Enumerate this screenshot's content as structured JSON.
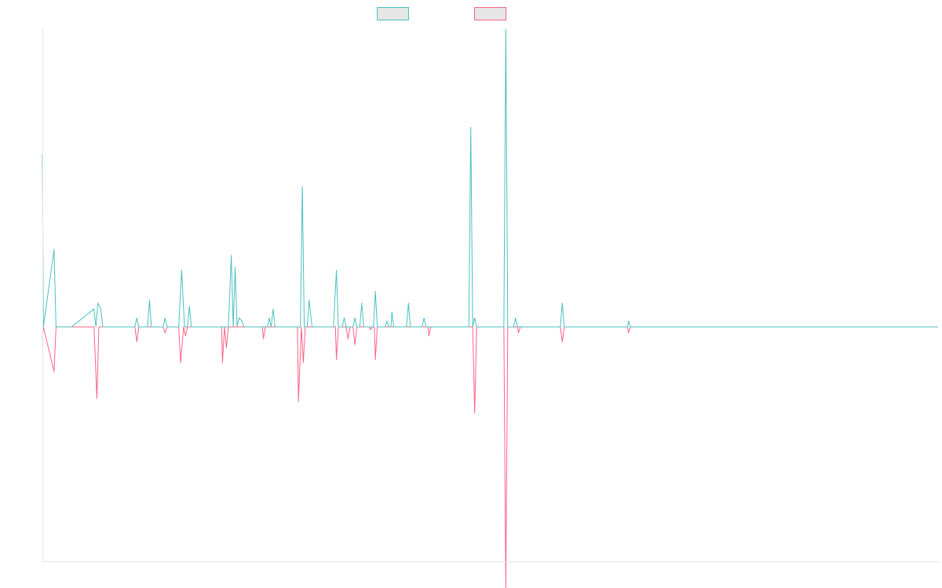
{
  "chart_data": {
    "type": "line",
    "title": "",
    "xlabel": "",
    "ylabel": "",
    "ylim": [
      -1,
      1
    ],
    "grid": false,
    "legend_position": "top-center",
    "series": [
      {
        "name": "",
        "color": "#4bc0c0",
        "points": [
          [
            0,
            0.58
          ],
          [
            1,
            0.0
          ],
          [
            12,
            0.26
          ],
          [
            14,
            0.0
          ],
          [
            30,
            0.0
          ],
          [
            53,
            0.06
          ],
          [
            55,
            0.0
          ],
          [
            57,
            0.08
          ],
          [
            60,
            0.06
          ],
          [
            62,
            0.0
          ],
          [
            95,
            0.0
          ],
          [
            97,
            0.03
          ],
          [
            99,
            0.0
          ],
          [
            108,
            0.0
          ],
          [
            110,
            0.09
          ],
          [
            112,
            0.0
          ],
          [
            124,
            0.0
          ],
          [
            126,
            0.03
          ],
          [
            128,
            0.0
          ],
          [
            140,
            0.0
          ],
          [
            143,
            0.19
          ],
          [
            146,
            0.0
          ],
          [
            149,
            0.0
          ],
          [
            151,
            0.07
          ],
          [
            153,
            0.0
          ],
          [
            191,
            0.0
          ],
          [
            194,
            0.24
          ],
          [
            196,
            0.0
          ],
          [
            198,
            0.2
          ],
          [
            200,
            0.0
          ],
          [
            202,
            0.03
          ],
          [
            205,
            0.02
          ],
          [
            207,
            0.0
          ],
          [
            231,
            0.0
          ],
          [
            233,
            0.03
          ],
          [
            235,
            0.0
          ],
          [
            237,
            0.06
          ],
          [
            239,
            0.0
          ],
          [
            265,
            0.0
          ],
          [
            267,
            0.47
          ],
          [
            269,
            0.0
          ],
          [
            272,
            0.0
          ],
          [
            274,
            0.09
          ],
          [
            277,
            0.0
          ],
          [
            299,
            0.0
          ],
          [
            302,
            0.19
          ],
          [
            304,
            0.0
          ],
          [
            308,
            0.0
          ],
          [
            310,
            0.03
          ],
          [
            312,
            0.0
          ],
          [
            319,
            0.0
          ],
          [
            321,
            0.03
          ],
          [
            323,
            0.0
          ],
          [
            326,
            0.0
          ],
          [
            328,
            0.08
          ],
          [
            330,
            0.0
          ],
          [
            340,
            0.0
          ],
          [
            342,
            0.12
          ],
          [
            344,
            0.0
          ],
          [
            352,
            0.0
          ],
          [
            354,
            0.02
          ],
          [
            356,
            0.0
          ],
          [
            358,
            0.0
          ],
          [
            359,
            0.05
          ],
          [
            361,
            0.0
          ],
          [
            374,
            0.0
          ],
          [
            376,
            0.08
          ],
          [
            378,
            0.0
          ],
          [
            390,
            0.0
          ],
          [
            392,
            0.03
          ],
          [
            394,
            0.0
          ],
          [
            438,
            0.0
          ],
          [
            440,
            0.67
          ],
          [
            442,
            0.0
          ],
          [
            444,
            0.03
          ],
          [
            446,
            0.0
          ],
          [
            474,
            0.0
          ],
          [
            476,
            1.0
          ],
          [
            478,
            0.0
          ],
          [
            484,
            0.0
          ],
          [
            486,
            0.03
          ],
          [
            488,
            0.0
          ],
          [
            532,
            0.0
          ],
          [
            534,
            0.08
          ],
          [
            536,
            0.0
          ],
          [
            601,
            0.0
          ],
          [
            602,
            0.02
          ],
          [
            604,
            0.0
          ],
          [
            920,
            0.0
          ]
        ]
      },
      {
        "name": "",
        "color": "#ff6384",
        "points": [
          [
            0,
            -0.04
          ],
          [
            1,
            0.0
          ],
          [
            12,
            -0.15
          ],
          [
            14,
            0.0
          ],
          [
            30,
            0.0
          ],
          [
            53,
            0.0
          ],
          [
            56,
            -0.24
          ],
          [
            58,
            0.0
          ],
          [
            95,
            0.0
          ],
          [
            97,
            -0.05
          ],
          [
            99,
            0.0
          ],
          [
            124,
            0.0
          ],
          [
            126,
            -0.02
          ],
          [
            128,
            0.0
          ],
          [
            140,
            0.0
          ],
          [
            142,
            -0.12
          ],
          [
            145,
            0.0
          ],
          [
            147,
            -0.03
          ],
          [
            149,
            0.0
          ],
          [
            184,
            0.0
          ],
          [
            185,
            -0.12
          ],
          [
            187,
            0.0
          ],
          [
            189,
            -0.07
          ],
          [
            191,
            0.0
          ],
          [
            226,
            0.0
          ],
          [
            227,
            -0.04
          ],
          [
            229,
            0.0
          ],
          [
            262,
            0.0
          ],
          [
            263,
            -0.25
          ],
          [
            266,
            0.0
          ],
          [
            268,
            -0.12
          ],
          [
            270,
            0.0
          ],
          [
            301,
            0.0
          ],
          [
            302,
            -0.11
          ],
          [
            304,
            0.0
          ],
          [
            312,
            0.0
          ],
          [
            314,
            -0.04
          ],
          [
            316,
            0.0
          ],
          [
            319,
            0.0
          ],
          [
            321,
            -0.06
          ],
          [
            323,
            0.0
          ],
          [
            336,
            0.0
          ],
          [
            337,
            -0.01
          ],
          [
            339,
            0.0
          ],
          [
            341,
            0.0
          ],
          [
            342,
            -0.11
          ],
          [
            344,
            0.0
          ],
          [
            396,
            0.0
          ],
          [
            397,
            -0.03
          ],
          [
            399,
            0.0
          ],
          [
            442,
            0.0
          ],
          [
            444,
            -0.29
          ],
          [
            446,
            0.0
          ],
          [
            474,
            0.0
          ],
          [
            476,
            -0.88
          ],
          [
            478,
            0.0
          ],
          [
            488,
            0.0
          ],
          [
            489,
            -0.02
          ],
          [
            491,
            0.0
          ],
          [
            532,
            0.0
          ],
          [
            534,
            -0.05
          ],
          [
            536,
            0.0
          ],
          [
            601,
            0.0
          ],
          [
            602,
            -0.02
          ],
          [
            604,
            0.0
          ],
          [
            920,
            0.0
          ]
        ]
      }
    ]
  }
}
